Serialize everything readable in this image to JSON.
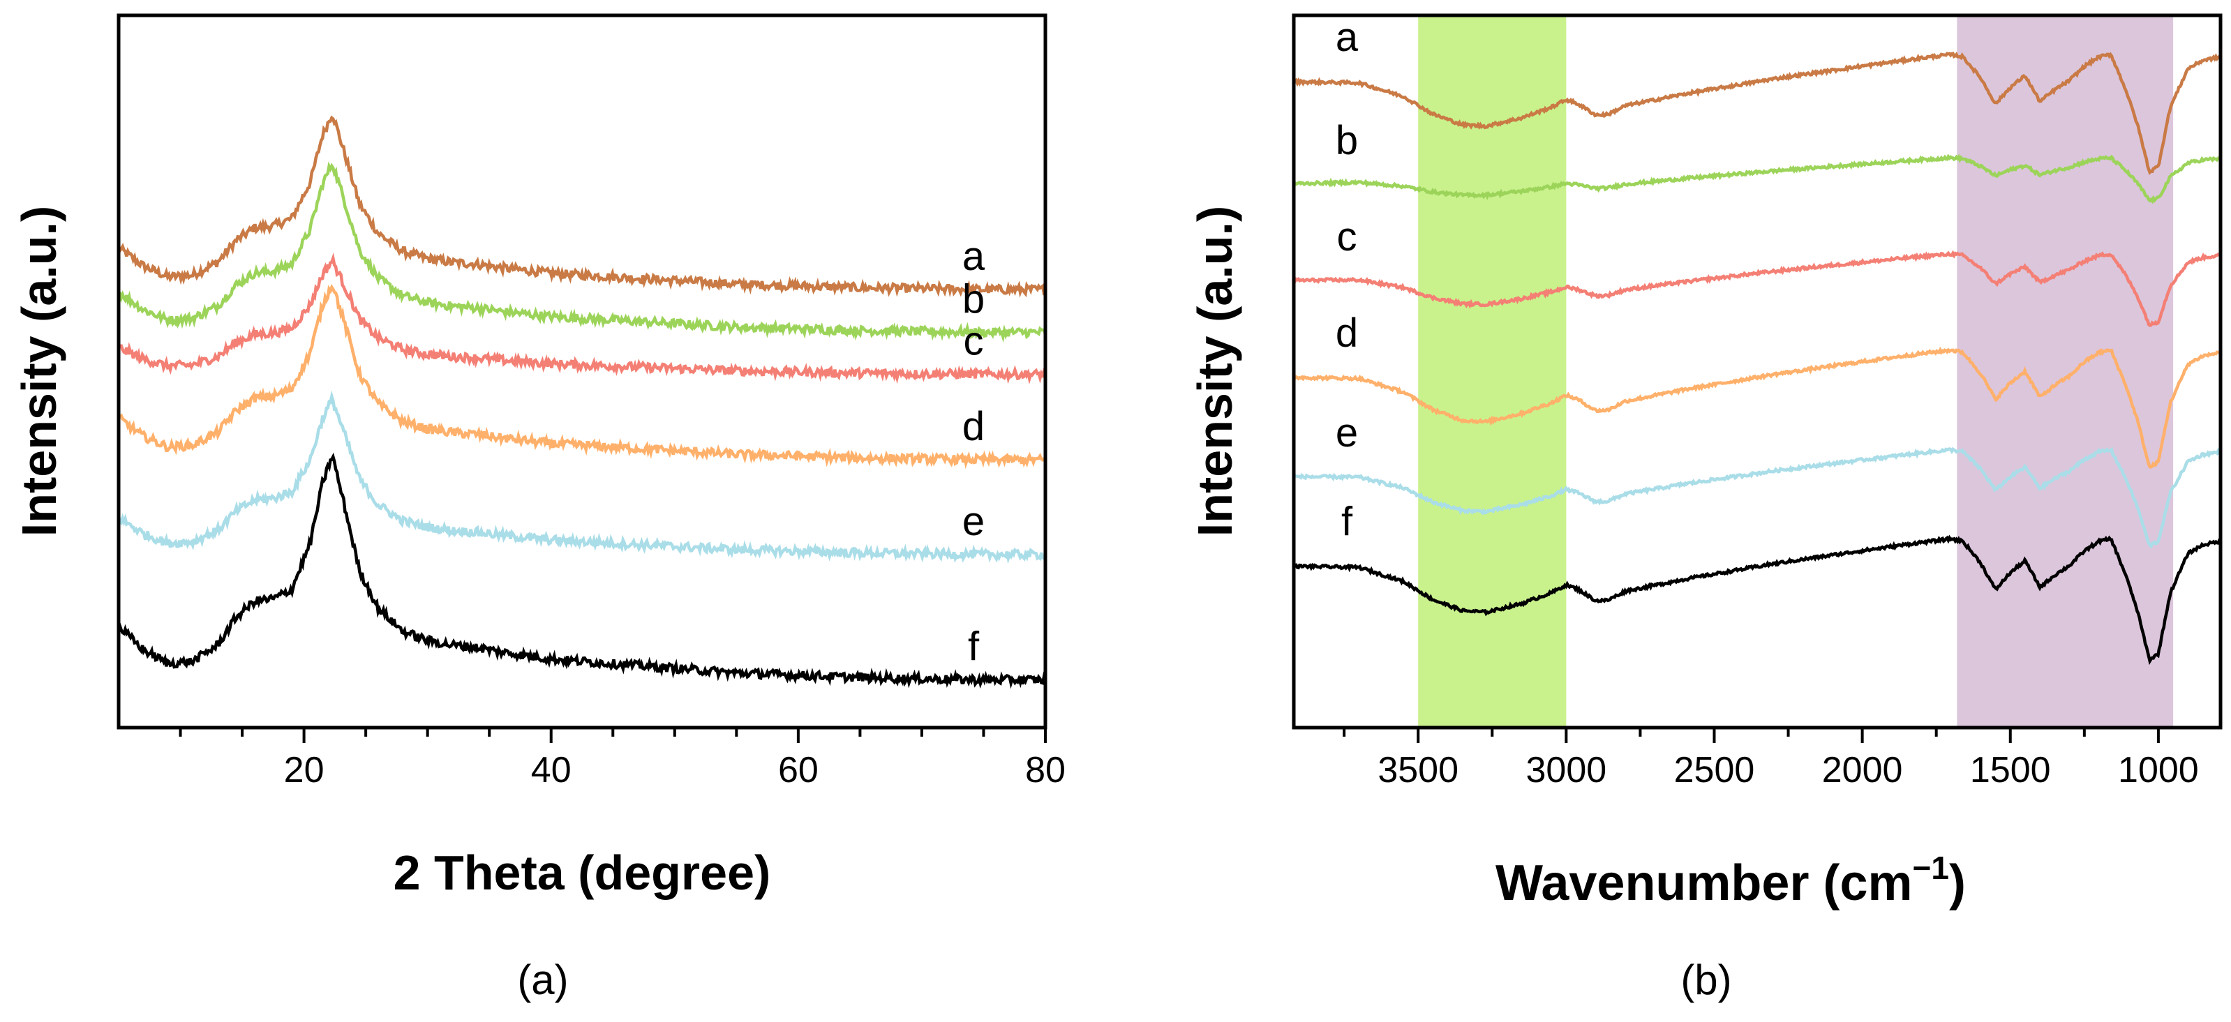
{
  "chart_data": [
    {
      "type": "line",
      "panel_label": "(a)",
      "xlabel": "2 Theta (degree)",
      "ylabel": "Intensity (a.u.)",
      "xlim": [
        5,
        80
      ],
      "ylim": [
        0,
        1
      ],
      "x_ticks": [
        20,
        40,
        60,
        80
      ],
      "x_minor_step": 5,
      "y_ticks_shown": false,
      "x_reversed": false,
      "grid": false,
      "legend": "none (curves labeled directly at right end)",
      "profile": {
        "description": "cellulose-like XRD pattern; relative shape points (2theta, relative height)",
        "x": [
          5,
          7,
          9,
          11,
          13,
          14.5,
          16,
          17.5,
          19,
          20.5,
          21.5,
          22.3,
          23.2,
          24.5,
          26,
          28,
          30,
          32,
          34,
          36,
          40,
          45,
          50,
          55,
          60,
          65,
          70,
          75,
          80
        ],
        "y": [
          0.26,
          0.16,
          0.1,
          0.11,
          0.18,
          0.3,
          0.37,
          0.38,
          0.42,
          0.62,
          0.88,
          1.0,
          0.8,
          0.5,
          0.34,
          0.24,
          0.2,
          0.18,
          0.17,
          0.15,
          0.12,
          0.1,
          0.08,
          0.06,
          0.05,
          0.04,
          0.035,
          0.03,
          0.03
        ]
      },
      "series": [
        {
          "name": "a",
          "color": "#C97A45",
          "baseline_end": 0.615,
          "amplitude": 0.255
        },
        {
          "name": "b",
          "color": "#9CD45A",
          "baseline_end": 0.555,
          "amplitude": 0.245
        },
        {
          "name": "c",
          "color": "#F47F74",
          "baseline_end": 0.496,
          "amplitude": 0.165
        },
        {
          "name": "d",
          "color": "#FFB06A",
          "baseline_end": 0.376,
          "amplitude": 0.255
        },
        {
          "name": "e",
          "color": "#A9DDE8",
          "baseline_end": 0.243,
          "amplitude": 0.225
        },
        {
          "name": "f",
          "color": "#000000",
          "baseline_end": 0.067,
          "amplitude": 0.325
        }
      ],
      "series_labels": [
        "a",
        "b",
        "c",
        "d",
        "e",
        "f"
      ]
    },
    {
      "type": "line",
      "panel_label": "(b)",
      "xlabel": "Wavenumber (cm",
      "xlabel_superscript": "−1",
      "xlabel_suffix": ")",
      "ylabel": "Intensity (a.u.)",
      "xlim": [
        3920,
        790
      ],
      "x_reversed": true,
      "ylim": [
        0,
        1
      ],
      "x_ticks": [
        3500,
        3000,
        2500,
        2000,
        1500,
        1000
      ],
      "x_minor_step": 250,
      "y_ticks_shown": false,
      "grid": false,
      "legend": "none (curves labeled directly at left)",
      "highlight_bands": [
        {
          "from": 3500,
          "to": 3000,
          "color": "#C9F28D"
        },
        {
          "from": 1680,
          "to": 950,
          "color": "#DCC6DC"
        }
      ],
      "profile": {
        "description": "FTIR spectrum shape; relative dip depth (0 = baseline transmission, larger = deeper absorption)",
        "x": [
          3920,
          3700,
          3550,
          3450,
          3350,
          3270,
          3150,
          3050,
          3000,
          2960,
          2900,
          2860,
          2800,
          2600,
          2300,
          2000,
          1800,
          1700,
          1660,
          1600,
          1550,
          1500,
          1450,
          1400,
          1350,
          1300,
          1250,
          1200,
          1160,
          1110,
          1070,
          1030,
          1000,
          960,
          900,
          850,
          790
        ],
        "y": [
          0.02,
          0.05,
          0.18,
          0.34,
          0.44,
          0.46,
          0.4,
          0.32,
          0.26,
          0.3,
          0.4,
          0.4,
          0.33,
          0.25,
          0.15,
          0.07,
          0.02,
          0.0,
          0.02,
          0.2,
          0.42,
          0.28,
          0.18,
          0.4,
          0.3,
          0.22,
          0.1,
          0.02,
          0.0,
          0.3,
          0.6,
          1.0,
          0.95,
          0.45,
          0.12,
          0.05,
          0.02
        ]
      },
      "series": [
        {
          "name": "a",
          "color": "#C97A45",
          "baseline": 0.945,
          "depth": 0.165
        },
        {
          "name": "b",
          "color": "#9CD45A",
          "baseline": 0.8,
          "depth": 0.06
        },
        {
          "name": "c",
          "color": "#F47F74",
          "baseline": 0.665,
          "depth": 0.1
        },
        {
          "name": "d",
          "color": "#FFB06A",
          "baseline": 0.53,
          "depth": 0.165
        },
        {
          "name": "e",
          "color": "#A9DDE8",
          "baseline": 0.39,
          "depth": 0.135
        },
        {
          "name": "f",
          "color": "#000000",
          "baseline": 0.265,
          "depth": 0.17
        }
      ],
      "series_labels": [
        "a",
        "b",
        "c",
        "d",
        "e",
        "f"
      ]
    }
  ]
}
